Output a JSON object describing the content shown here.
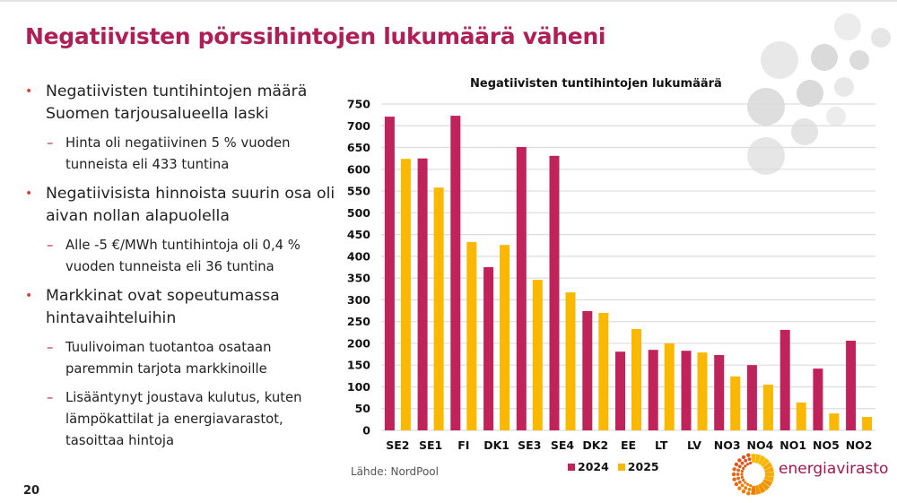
{
  "slide": {
    "title": "Negatiivisten pörssihintojen lukumäärä väheni",
    "page_number": "20",
    "bullets": [
      {
        "text": "Negatiivisten tuntihintojen määrä Suomen tarjousalueella laski",
        "sub": [
          "Hinta oli negatiivinen 5 % vuoden tunneista eli 433 tuntina"
        ]
      },
      {
        "text": "Negatiivisista hinnoista suurin osa oli aivan nollan alapuolella",
        "sub": [
          "Alle -5 €/MWh tuntihintoja oli 0,4 % vuoden tunneista eli 36 tuntina"
        ]
      },
      {
        "text": "Markkinat ovat sopeutumassa hintavaihteluihin",
        "sub": [
          "Tuulivoiman tuotantoa osataan paremmin tarjota markkinoille",
          "Lisääntynyt joustava kulutus, kuten lämpökattilat ja energiavarastot, tasoittaa hintoja"
        ]
      }
    ],
    "bullet_glyph": "•",
    "sub_glyph": "–",
    "source": "Lähde: NordPool",
    "logo_text": "energiavirasto",
    "colors": {
      "title": "#b01e57",
      "series_2024": "#c0225a",
      "series_2025": "#fbb800",
      "grid": "#dcdcdc"
    }
  },
  "chart_data": {
    "type": "bar",
    "title": "Negatiivisten tuntihintojen lukumäärä",
    "xlabel": "",
    "ylabel": "",
    "ylim": [
      0,
      750
    ],
    "yticks": [
      0,
      50,
      100,
      150,
      200,
      250,
      300,
      350,
      400,
      450,
      500,
      550,
      600,
      650,
      700,
      750
    ],
    "grid": true,
    "legend_position": "bottom",
    "categories": [
      "SE2",
      "SE1",
      "FI",
      "DK1",
      "SE3",
      "SE4",
      "DK2",
      "EE",
      "LT",
      "LV",
      "NO3",
      "NO4",
      "NO1",
      "NO5",
      "NO2"
    ],
    "series": [
      {
        "name": "2024",
        "color": "#c0225a",
        "values": [
          721,
          625,
          723,
          375,
          651,
          631,
          274,
          181,
          185,
          183,
          173,
          150,
          231,
          142,
          206
        ]
      },
      {
        "name": "2025",
        "color": "#fbb800",
        "values": [
          624,
          558,
          433,
          426,
          346,
          317,
          270,
          233,
          200,
          179,
          124,
          105,
          64,
          39,
          31
        ]
      }
    ]
  }
}
